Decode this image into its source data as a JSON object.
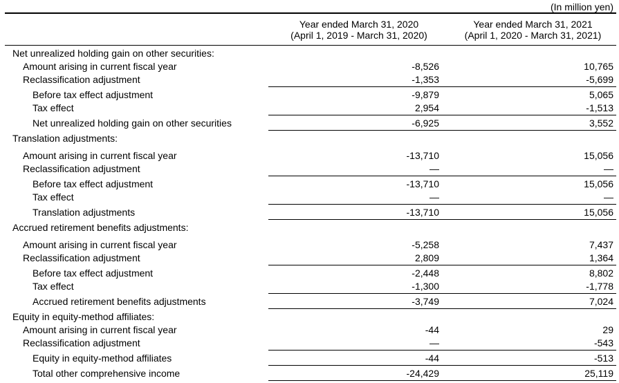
{
  "unit_note": "(In million yen)",
  "columns": [
    {
      "line1": "Year ended March 31, 2020",
      "line2": "(April 1, 2019 - March 31, 2020)"
    },
    {
      "line1": "Year ended March 31, 2021",
      "line2": "(April 1, 2020 - March 31, 2021)"
    }
  ],
  "sections": [
    {
      "header": "Net unrealized holding gain on other securities:",
      "gap_after_header": false,
      "rows": [
        {
          "label": "Amount arising in current fiscal year",
          "indent": 1,
          "fy2020": "-8,526",
          "fy2021": "10,765",
          "underline": false
        },
        {
          "label": "Reclassification adjustment",
          "indent": 1,
          "fy2020": "-1,353",
          "fy2021": "-5,699",
          "underline": true
        },
        {
          "label": "Before tax effect adjustment",
          "indent": 2,
          "fy2020": "-9,879",
          "fy2021": "5,065",
          "underline": false
        },
        {
          "label": "Tax effect",
          "indent": 2,
          "fy2020": "2,954",
          "fy2021": "-1,513",
          "underline": true
        },
        {
          "label": "Net unrealized holding gain on other securities",
          "indent": 2,
          "fy2020": "-6,925",
          "fy2021": "3,552",
          "underline": true
        }
      ]
    },
    {
      "header": "Translation adjustments:",
      "gap_after_header": true,
      "rows": [
        {
          "label": "Amount arising in current fiscal year",
          "indent": 1,
          "fy2020": "-13,710",
          "fy2021": "15,056",
          "underline": false
        },
        {
          "label": "Reclassification adjustment",
          "indent": 1,
          "fy2020": "—",
          "fy2021": "—",
          "underline": true
        },
        {
          "label": "Before tax effect adjustment",
          "indent": 2,
          "fy2020": "-13,710",
          "fy2021": "15,056",
          "underline": false
        },
        {
          "label": "Tax effect",
          "indent": 2,
          "fy2020": "—",
          "fy2021": "—",
          "underline": true
        },
        {
          "label": "Translation adjustments",
          "indent": 2,
          "fy2020": "-13,710",
          "fy2021": "15,056",
          "underline": true
        }
      ]
    },
    {
      "header": "Accrued retirement benefits adjustments:",
      "gap_after_header": true,
      "rows": [
        {
          "label": "Amount arising in current fiscal year",
          "indent": 1,
          "fy2020": "-5,258",
          "fy2021": "7,437",
          "underline": false
        },
        {
          "label": "Reclassification adjustment",
          "indent": 1,
          "fy2020": "2,809",
          "fy2021": "1,364",
          "underline": true
        },
        {
          "label": "Before tax effect adjustment",
          "indent": 2,
          "fy2020": "-2,448",
          "fy2021": "8,802",
          "underline": false
        },
        {
          "label": "Tax effect",
          "indent": 2,
          "fy2020": "-1,300",
          "fy2021": "-1,778",
          "underline": true
        },
        {
          "label": "Accrued retirement benefits adjustments",
          "indent": 2,
          "fy2020": "-3,749",
          "fy2021": "7,024",
          "underline": true
        }
      ]
    },
    {
      "header": "Equity in equity-method affiliates:",
      "gap_after_header": false,
      "rows": [
        {
          "label": "Amount arising in current fiscal year",
          "indent": 1,
          "fy2020": "-44",
          "fy2021": "29",
          "underline": false
        },
        {
          "label": "Reclassification adjustment",
          "indent": 1,
          "fy2020": "—",
          "fy2021": "-543",
          "underline": true
        },
        {
          "label": "Equity in equity-method affiliates",
          "indent": 2,
          "fy2020": "-44",
          "fy2021": "-513",
          "underline": true
        },
        {
          "label": "Total other comprehensive income",
          "indent": 2,
          "fy2020": "-24,429",
          "fy2021": "25,119",
          "underline": true
        }
      ]
    }
  ]
}
